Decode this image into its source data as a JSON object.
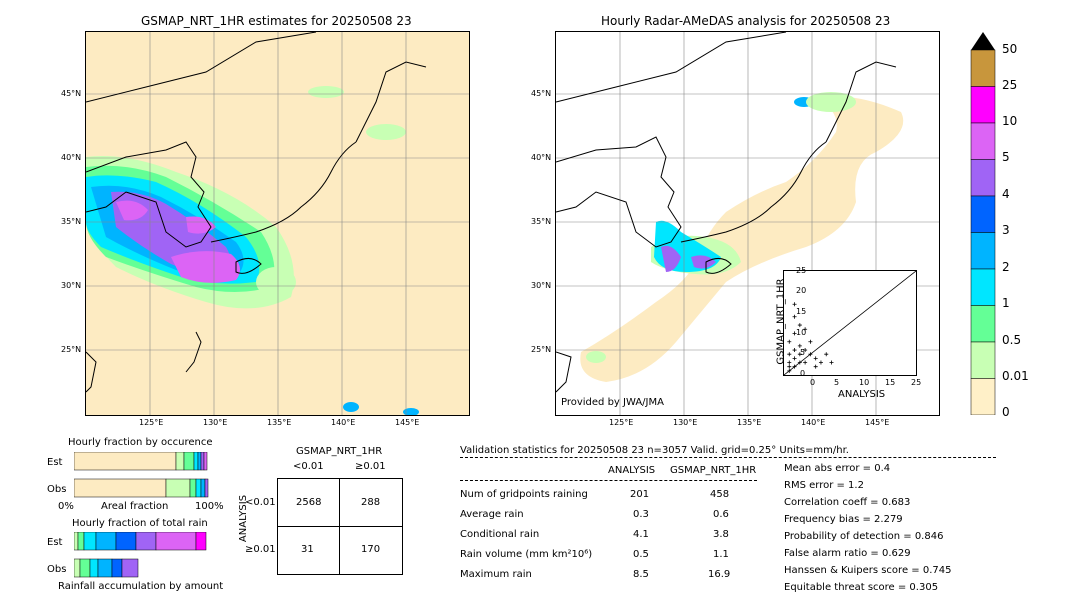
{
  "left_map": {
    "title": "GSMAP_NRT_1HR estimates for 20250508 23",
    "lat_labels": [
      "45°N",
      "40°N",
      "35°N",
      "30°N",
      "25°N"
    ],
    "lon_labels": [
      "125°E",
      "130°E",
      "135°E",
      "140°E",
      "145°E"
    ]
  },
  "right_map": {
    "title": "Hourly Radar-AMeDAS analysis for 20250508 23",
    "lat_labels": [
      "45°N",
      "40°N",
      "35°N",
      "30°N",
      "25°N"
    ],
    "lon_labels": [
      "125°E",
      "130°E",
      "135°E",
      "140°E",
      "145°E"
    ],
    "credit": "Provided by JWA/JMA"
  },
  "colorbar": {
    "labels": [
      "50",
      "25",
      "10",
      "5",
      "4",
      "3",
      "2",
      "1",
      "0.5",
      "0.01",
      "0"
    ],
    "colors": [
      "#c8963c",
      "#ff00ff",
      "#dc64f5",
      "#a064f5",
      "#0064ff",
      "#00b4ff",
      "#00e6ff",
      "#64ff96",
      "#c8ffb4",
      "#fff0c8"
    ]
  },
  "scatter": {
    "xlabel": "ANALYSIS",
    "ylabel": "GSMAP_NRT_1HR",
    "ticks": [
      "0",
      "5",
      "10",
      "15",
      "20",
      "25"
    ]
  },
  "occurrence": {
    "title": "Hourly fraction by occurence",
    "row_est": "Est",
    "row_obs": "Obs",
    "axis_left": "0%",
    "axis_mid": "Areal fraction",
    "axis_right": "100%"
  },
  "total_rain": {
    "title": "Hourly fraction of total rain",
    "row_est": "Est",
    "row_obs": "Obs",
    "footer": "Rainfall accumulation by amount"
  },
  "contingency": {
    "title": "GSMAP_NRT_1HR",
    "col_lt": "<0.01",
    "col_ge": "≥0.01",
    "side": "ANALYSIS",
    "row_lt": "<0.01",
    "row_ge": "≥0.01",
    "a": "2568",
    "b": "288",
    "c": "31",
    "d": "170"
  },
  "validation": {
    "header": "Validation statistics for 20250508 23  n=3057 Valid. grid=0.25° Units=mm/hr.",
    "col1": "ANALYSIS",
    "col2": "GSMAP_NRT_1HR",
    "rows": [
      {
        "label": "Num of gridpoints raining",
        "a": "201",
        "g": "458"
      },
      {
        "label": "Average rain",
        "a": "0.3",
        "g": "0.6"
      },
      {
        "label": "Conditional rain",
        "a": "4.1",
        "g": "3.8"
      },
      {
        "label": "Rain volume (mm km²10⁶)",
        "a": "0.5",
        "g": "1.1"
      },
      {
        "label": "Maximum rain",
        "a": "8.5",
        "g": "16.9"
      }
    ],
    "scores": [
      "Mean abs error =    0.4",
      "RMS error =    1.2",
      "Correlation coeff =  0.683",
      "Frequency bias =  2.279",
      "Probability of detection =  0.846",
      "False alarm ratio =  0.629",
      "Hanssen & Kuipers score =  0.745",
      "Equitable threat score =  0.305"
    ]
  }
}
